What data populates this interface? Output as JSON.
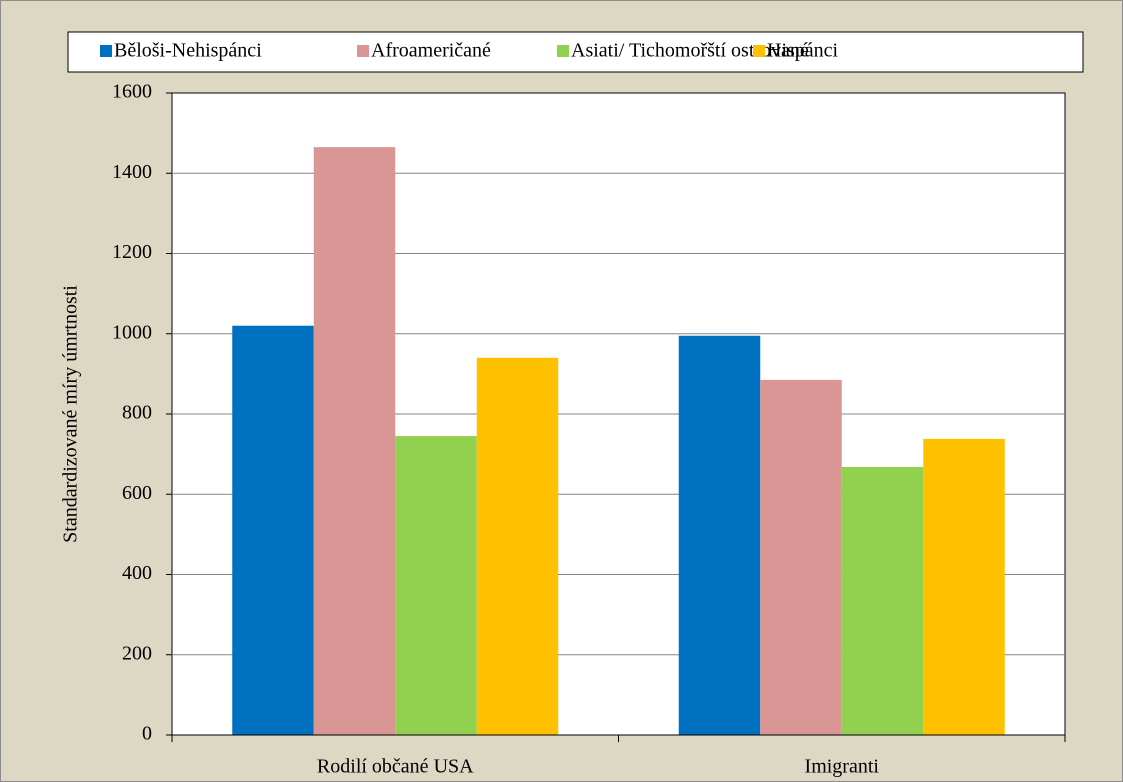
{
  "chart_data": {
    "type": "bar",
    "ylabel": "Standardizované míry úmrtnosti",
    "categories": [
      "Rodilí občané USA",
      "Imigranti"
    ],
    "series": [
      {
        "name": "Běloši-Nehispánci",
        "color": "#0070c0",
        "values": [
          1020,
          995
        ]
      },
      {
        "name": "Afroameričané",
        "color": "#d99694",
        "values": [
          1465,
          885
        ]
      },
      {
        "name": "Asiati/ Tichomořští ostrované",
        "color": "#92d050",
        "values": [
          745,
          668
        ]
      },
      {
        "name": "Hispánci",
        "color": "#ffc000",
        "values": [
          940,
          738
        ]
      }
    ],
    "ylim": [
      0,
      1600
    ],
    "yticks": [
      0,
      200,
      400,
      600,
      800,
      1000,
      1200,
      1400,
      1600
    ],
    "grid": true,
    "legend": "top"
  }
}
